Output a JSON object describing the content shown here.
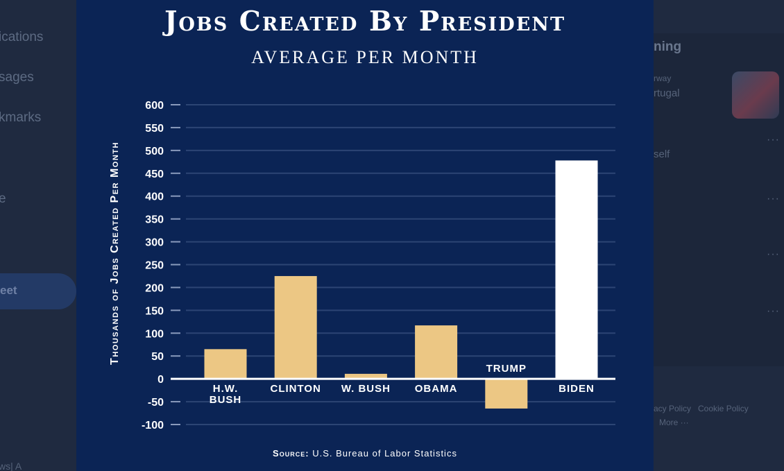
{
  "background": {
    "nav_items": [
      "ications",
      "sages",
      "kmarks",
      "e"
    ],
    "tweet_button": "eet",
    "bottom_text": "ws| A",
    "trending_header": "ning",
    "trend_meta": "rway",
    "trend_title": "rtugal",
    "trend_sub": "self",
    "footer_links": [
      "acy Policy",
      "Cookie Policy"
    ],
    "footer_more": "More ···"
  },
  "colors": {
    "card_bg": "#0b2455",
    "bar": "#ecc784",
    "highlight_bar": "#ffffff",
    "gridline": "#2c4574",
    "text": "#ffffff"
  },
  "chart_data": {
    "type": "bar",
    "title": "Jobs Created By President",
    "subtitle": "AVERAGE PER MONTH",
    "ylabel": "Thousands of Jobs Created Per Month",
    "xlabel": "",
    "ylim": [
      -100,
      600
    ],
    "yticks": [
      600,
      550,
      500,
      450,
      400,
      350,
      300,
      250,
      200,
      150,
      100,
      50,
      0,
      -50,
      -100
    ],
    "grid": true,
    "categories": [
      "H.W. BUSH",
      "CLINTON",
      "W. BUSH",
      "OBAMA",
      "TRUMP",
      "BIDEN"
    ],
    "category_lines": [
      [
        "H.W.",
        "BUSH"
      ],
      [
        "CLINTON"
      ],
      [
        "W. BUSH"
      ],
      [
        "OBAMA"
      ],
      [
        "TRUMP"
      ],
      [
        "BIDEN"
      ]
    ],
    "values": [
      65,
      225,
      11,
      117,
      -65,
      478
    ],
    "highlight": "BIDEN",
    "source_label": "Source:",
    "source_text": "U.S. Bureau of Labor Statistics"
  }
}
